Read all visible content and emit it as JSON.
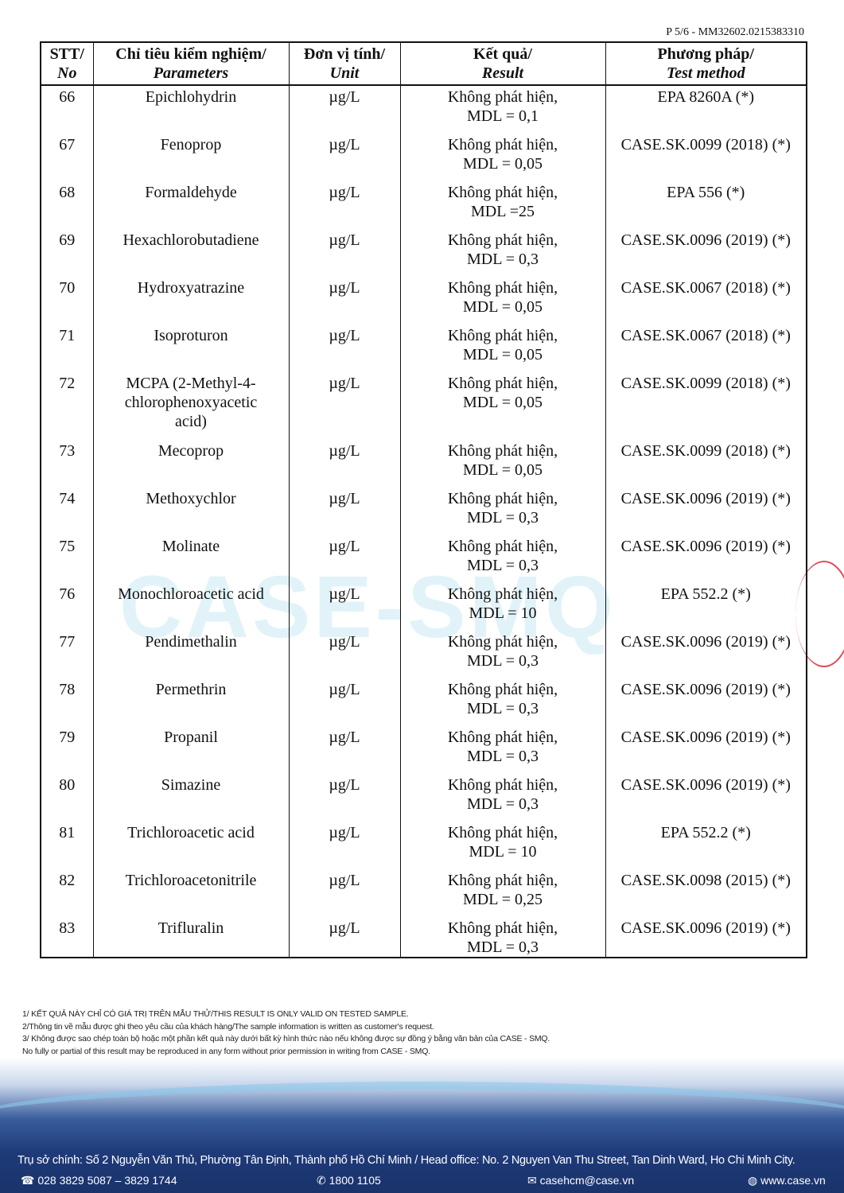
{
  "page_ref": "P 5/6 - MM32602.0215383310",
  "watermark": "CASE-SMQ",
  "table": {
    "headers": [
      {
        "vi": "STT/",
        "en": "No"
      },
      {
        "vi": "Chỉ tiêu kiểm nghiệm/",
        "en": "Parameters"
      },
      {
        "vi": "Đơn vị tính/",
        "en": "Unit"
      },
      {
        "vi": "Kết quả/",
        "en": "Result"
      },
      {
        "vi": "Phương pháp/",
        "en": "Test method"
      }
    ],
    "rows": [
      {
        "no": "66",
        "param": "Epichlohydrin",
        "unit": "µg/L",
        "result": "Không phát hiện,",
        "mdl": "MDL = 0,1",
        "method": "EPA 8260A (*)"
      },
      {
        "no": "67",
        "param": "Fenoprop",
        "unit": "µg/L",
        "result": "Không phát hiện,",
        "mdl": "MDL = 0,05",
        "method": "CASE.SK.0099 (2018) (*)"
      },
      {
        "no": "68",
        "param": "Formaldehyde",
        "unit": "µg/L",
        "result": "Không phát hiện,",
        "mdl": "MDL =25",
        "method": "EPA 556 (*)"
      },
      {
        "no": "69",
        "param": "Hexachlorobutadiene",
        "unit": "µg/L",
        "result": "Không phát hiện,",
        "mdl": "MDL = 0,3",
        "method": "CASE.SK.0096 (2019) (*)"
      },
      {
        "no": "70",
        "param": "Hydroxyatrazine",
        "unit": "µg/L",
        "result": "Không phát hiện,",
        "mdl": "MDL = 0,05",
        "method": "CASE.SK.0067 (2018) (*)"
      },
      {
        "no": "71",
        "param": "Isoproturon",
        "unit": "µg/L",
        "result": "Không phát hiện,",
        "mdl": "MDL = 0,05",
        "method": "CASE.SK.0067 (2018) (*)"
      },
      {
        "no": "72",
        "param": "MCPA (2-Methyl-4-chlorophenoxyacetic acid)",
        "unit": "µg/L",
        "result": "Không phát hiện,",
        "mdl": "MDL = 0,05",
        "method": "CASE.SK.0099 (2018) (*)"
      },
      {
        "no": "73",
        "param": "Mecoprop",
        "unit": "µg/L",
        "result": "Không phát hiện,",
        "mdl": "MDL = 0,05",
        "method": "CASE.SK.0099 (2018) (*)"
      },
      {
        "no": "74",
        "param": "Methoxychlor",
        "unit": "µg/L",
        "result": "Không phát hiện,",
        "mdl": "MDL = 0,3",
        "method": "CASE.SK.0096 (2019) (*)"
      },
      {
        "no": "75",
        "param": "Molinate",
        "unit": "µg/L",
        "result": "Không phát hiện,",
        "mdl": "MDL = 0,3",
        "method": "CASE.SK.0096 (2019) (*)"
      },
      {
        "no": "76",
        "param": "Monochloroacetic acid",
        "unit": "µg/L",
        "result": "Không phát hiện,",
        "mdl": "MDL = 10",
        "method": "EPA 552.2 (*)"
      },
      {
        "no": "77",
        "param": "Pendimethalin",
        "unit": "µg/L",
        "result": "Không phát hiện,",
        "mdl": "MDL = 0,3",
        "method": "CASE.SK.0096 (2019) (*)"
      },
      {
        "no": "78",
        "param": "Permethrin",
        "unit": "µg/L",
        "result": "Không phát hiện,",
        "mdl": "MDL = 0,3",
        "method": "CASE.SK.0096 (2019) (*)"
      },
      {
        "no": "79",
        "param": "Propanil",
        "unit": "µg/L",
        "result": "Không phát hiện,",
        "mdl": "MDL = 0,3",
        "method": "CASE.SK.0096 (2019) (*)"
      },
      {
        "no": "80",
        "param": "Simazine",
        "unit": "µg/L",
        "result": "Không phát hiện,",
        "mdl": "MDL = 0,3",
        "method": "CASE.SK.0096 (2019) (*)"
      },
      {
        "no": "81",
        "param": "Trichloroacetic acid",
        "unit": "µg/L",
        "result": "Không phát hiện,",
        "mdl": "MDL = 10",
        "method": "EPA 552.2 (*)"
      },
      {
        "no": "82",
        "param": "Trichloroacetonitrile",
        "unit": "µg/L",
        "result": "Không phát hiện,",
        "mdl": "MDL = 0,25",
        "method": "CASE.SK.0098 (2015) (*)"
      },
      {
        "no": "83",
        "param": "Trifluralin",
        "unit": "µg/L",
        "result": "Không phát hiện,",
        "mdl": "MDL = 0,3",
        "method": "CASE.SK.0096 (2019) (*)"
      }
    ]
  },
  "notes": [
    "1/ KẾT QUẢ NÀY CHỈ CÓ GIÁ TRỊ TRÊN MẪU THỬ/THIS RESULT IS ONLY VALID ON TESTED SAMPLE.",
    "2/Thông tin về mẫu được ghi theo yêu cầu của khách hàng/The sample information is written as customer's request.",
    "3/ Không được sao chép toàn bộ hoặc một phần kết quả này dưới bất kỳ hình thức nào nếu không được sự đồng ý bằng văn bản của CASE - SMQ.",
    "No fully or partial of this result may be reproduced in any form without prior permission in writing from CASE - SMQ."
  ],
  "footer": {
    "address": "Trụ sở chính: Số 2 Nguyễn Văn Thủ, Phường Tân Định, Thành phố Hồ Chí Minh / Head office: No. 2 Nguyen Van Thu Street, Tan Dinh Ward, Ho Chi Minh City.",
    "phone": "028 3829 5087 – 3829 1744",
    "hotline": "1800 1105",
    "email": "casehcm@case.vn",
    "website": "www.case.vn",
    "icons": [
      "telephone-icon",
      "phone-handset-icon",
      "envelope-icon",
      "globe-icon"
    ]
  },
  "colors": {
    "footer_blue": "#1e3a78",
    "watermark": "#78c8e1",
    "stamp_red": "#e04a55"
  }
}
